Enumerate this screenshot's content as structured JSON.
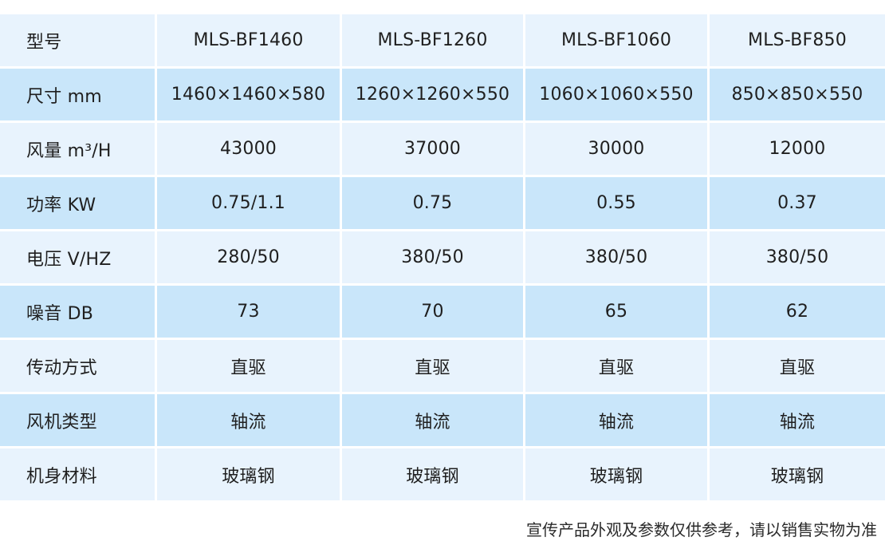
{
  "header": {
    "label": "型号",
    "models": [
      "MLS-BF1460",
      "MLS-BF1260",
      "MLS-BF1060",
      "MLS-BF850"
    ]
  },
  "rows": [
    {
      "label": "尺寸  mm",
      "values": [
        "1460×1460×580",
        "1260×1260×550",
        "1060×1060×550",
        "850×850×550"
      ]
    },
    {
      "label": "风量  m³/H",
      "values": [
        "43000",
        "37000",
        "30000",
        "12000"
      ]
    },
    {
      "label": "功率  KW",
      "values": [
        "0.75/1.1",
        "0.75",
        "0.55",
        "0.37"
      ]
    },
    {
      "label": "电压  V/HZ",
      "values": [
        "280/50",
        "380/50",
        "380/50",
        "380/50"
      ]
    },
    {
      "label": "噪音  DB",
      "values": [
        "73",
        "70",
        "65",
        "62"
      ]
    },
    {
      "label": "传动方式",
      "values": [
        "直驱",
        "直驱",
        "直驱",
        "直驱"
      ]
    },
    {
      "label": "风机类型",
      "values": [
        "轴流",
        "轴流",
        "轴流",
        "轴流"
      ]
    },
    {
      "label": "机身材料",
      "values": [
        "玻璃钢",
        "玻璃钢",
        "玻璃钢",
        "玻璃钢"
      ]
    }
  ],
  "footer": {
    "note": "宣传产品外观及参数仅供参考，请以销售实物为准"
  },
  "colors": {
    "row_light": "#e8f3fd",
    "row_dark": "#c9e6fa"
  }
}
